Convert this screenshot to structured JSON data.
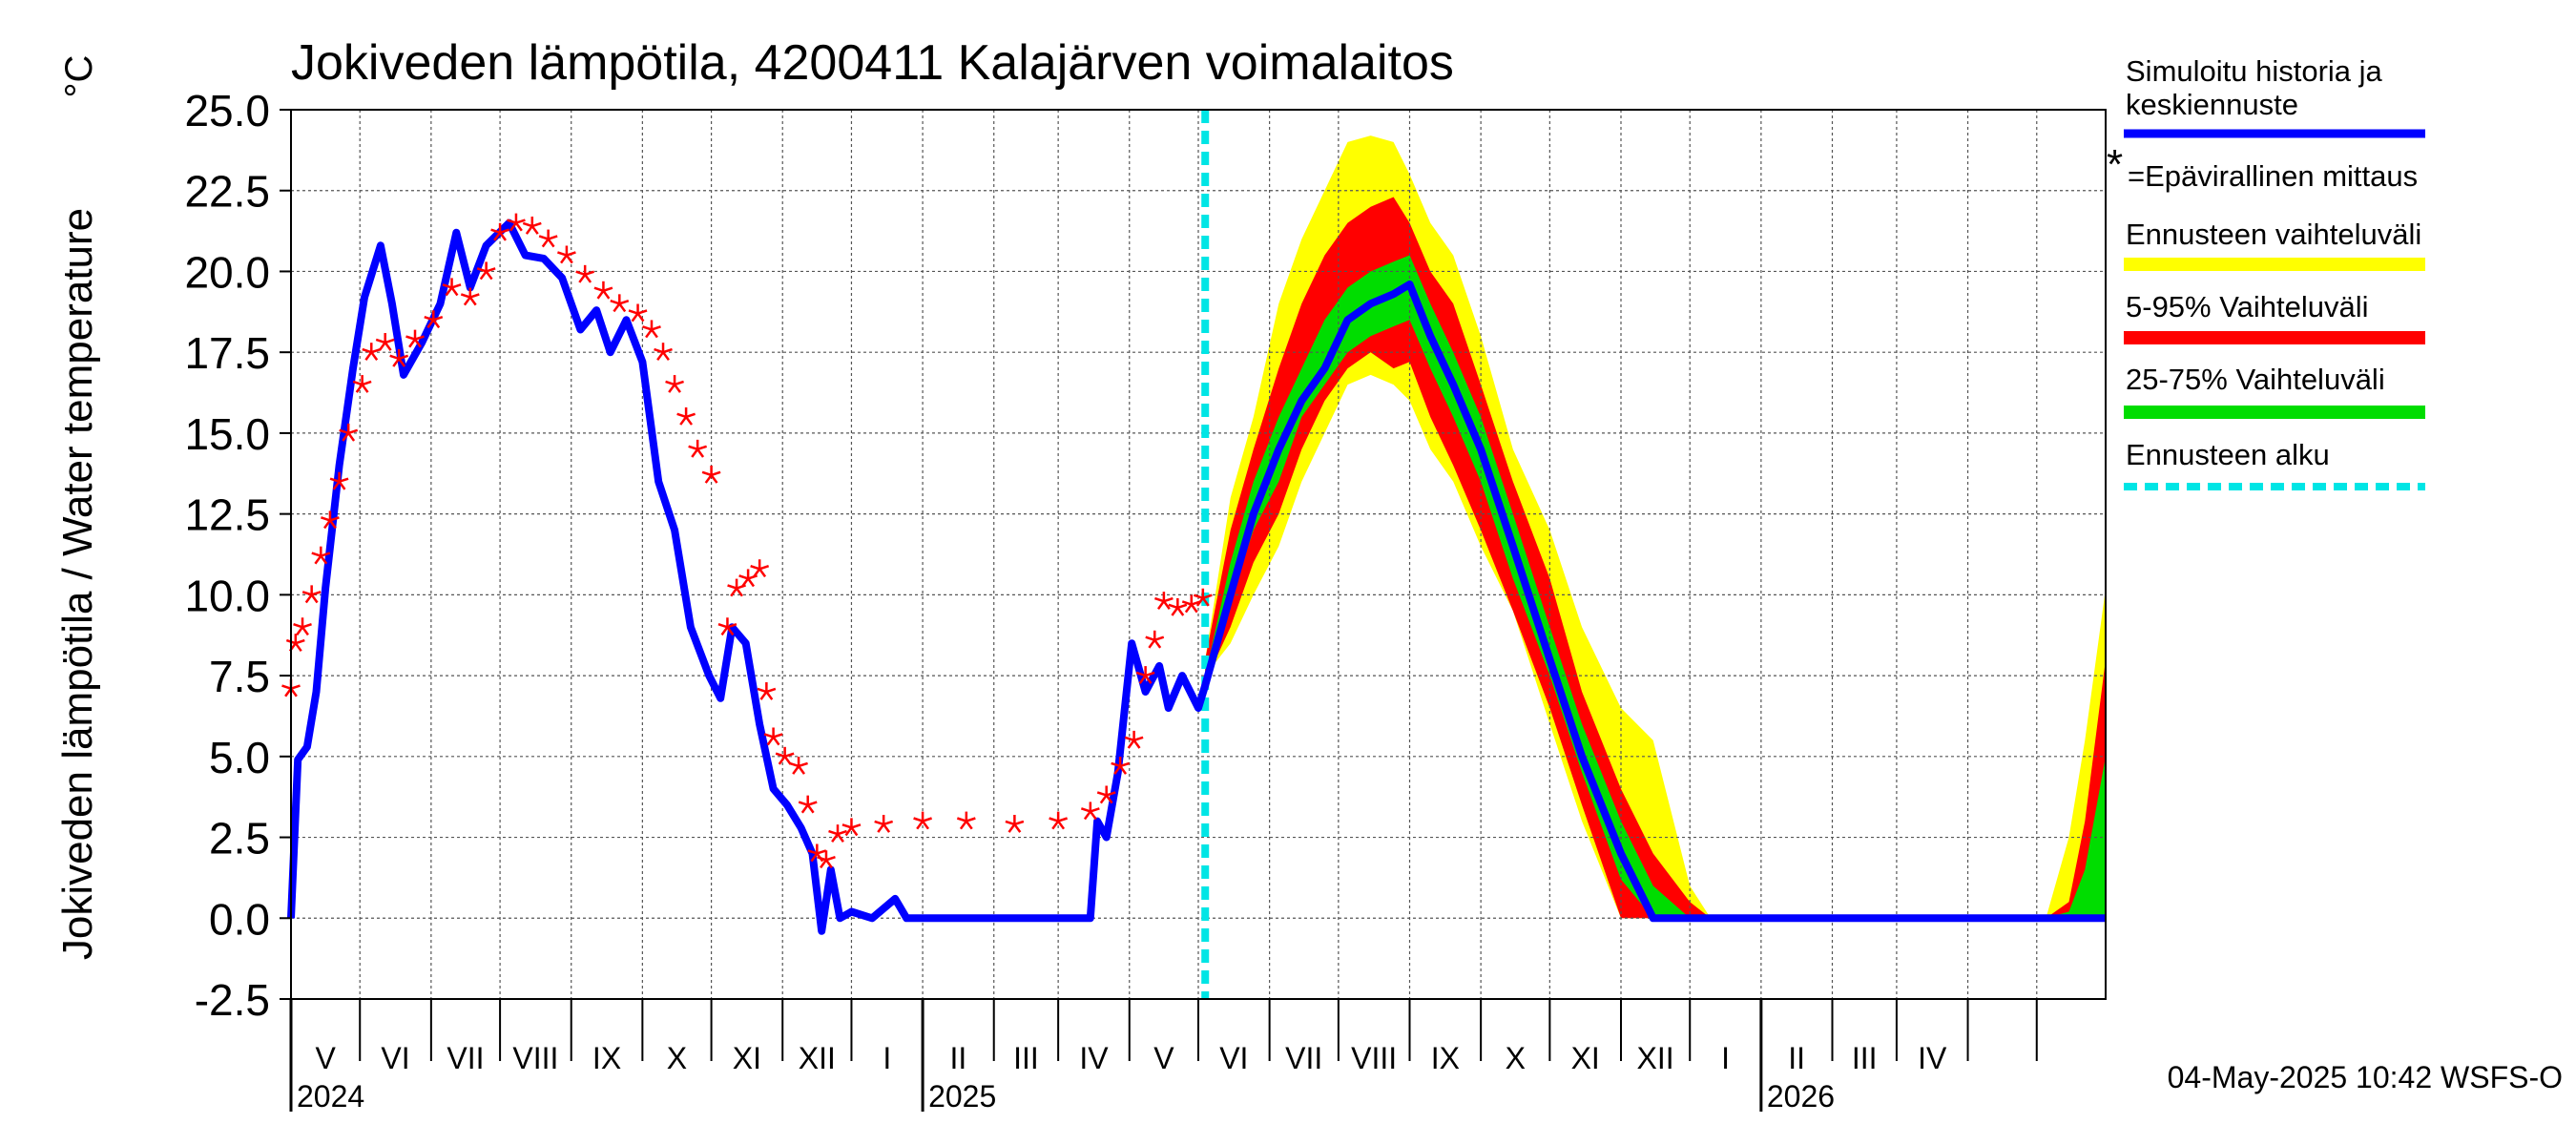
{
  "chart_data": {
    "type": "line",
    "title": "Jokiveden lämpötila, 4200411 Kalajärven voimalaitos",
    "ylabel": "Jokiveden lämpötila / Water temperature",
    "yunit": "°C",
    "ylim": [
      -2.5,
      25.0
    ],
    "yticks": [
      "25.0",
      "22.5",
      "20.0",
      "17.5",
      "15.0",
      "12.5",
      "10.0",
      "7.5",
      "5.0",
      "2.5",
      "0.0",
      "-2.5"
    ],
    "xlim": [
      "2024-04-01",
      "2026-05-31"
    ],
    "month_labels": [
      "V",
      "VI",
      "VII",
      "VIII",
      "IX",
      "X",
      "XI",
      "XII",
      "I",
      "II",
      "III",
      "IV",
      "V",
      "VI",
      "VII",
      "VIII",
      "IX",
      "X",
      "XI",
      "XII",
      "I",
      "II",
      "III",
      "IV"
    ],
    "year_labels": [
      "2024",
      "2025",
      "2026"
    ],
    "forecast_start": "2025-05-04",
    "timestamp": "04-May-2025 10:42 WSFS-O",
    "grid": true,
    "legend_position": "right",
    "legend": {
      "simulated": "Simuloitu historia ja keskiennuste",
      "observed": "=Epävirallinen mittaus",
      "range_full": "Ennusteen vaihteluväli",
      "range_5_95": "5-95% Vaihteluväli",
      "range_25_75": "25-75% Vaihteluväli",
      "forecast_start": "Ennusteen alku"
    },
    "colors": {
      "simulated": "#0000ff",
      "observed": "#ff0000",
      "range_full": "#ffff00",
      "range_5_95": "#ff0000",
      "range_25_75": "#00dd00",
      "forecast_start": "#00e5e5"
    },
    "series": [
      {
        "name": "Simuloitu historia ja keskiennuste",
        "points": [
          [
            "2024-04-01",
            0.0
          ],
          [
            "2024-04-04",
            4.9
          ],
          [
            "2024-04-08",
            5.3
          ],
          [
            "2024-04-12",
            7.0
          ],
          [
            "2024-04-16",
            10.2
          ],
          [
            "2024-04-22",
            14.0
          ],
          [
            "2024-04-28",
            17.0
          ],
          [
            "2024-05-03",
            19.2
          ],
          [
            "2024-05-10",
            20.8
          ],
          [
            "2024-05-15",
            19.0
          ],
          [
            "2024-05-20",
            16.8
          ],
          [
            "2024-05-28",
            17.8
          ],
          [
            "2024-06-05",
            19.0
          ],
          [
            "2024-06-12",
            21.2
          ],
          [
            "2024-06-18",
            19.5
          ],
          [
            "2024-06-25",
            20.8
          ],
          [
            "2024-07-05",
            21.5
          ],
          [
            "2024-07-12",
            20.5
          ],
          [
            "2024-07-20",
            20.4
          ],
          [
            "2024-07-28",
            19.8
          ],
          [
            "2024-08-05",
            18.2
          ],
          [
            "2024-08-12",
            18.8
          ],
          [
            "2024-08-18",
            17.5
          ],
          [
            "2024-08-25",
            18.5
          ],
          [
            "2024-09-01",
            17.2
          ],
          [
            "2024-09-08",
            13.5
          ],
          [
            "2024-09-15",
            12.0
          ],
          [
            "2024-09-22",
            9.0
          ],
          [
            "2024-09-30",
            7.5
          ],
          [
            "2024-10-05",
            6.8
          ],
          [
            "2024-10-10",
            9.0
          ],
          [
            "2024-10-16",
            8.5
          ],
          [
            "2024-10-22",
            6.0
          ],
          [
            "2024-10-28",
            4.0
          ],
          [
            "2024-11-03",
            3.5
          ],
          [
            "2024-11-09",
            2.8
          ],
          [
            "2024-11-14",
            2.0
          ],
          [
            "2024-11-18",
            -0.4
          ],
          [
            "2024-11-22",
            1.5
          ],
          [
            "2024-11-26",
            0.0
          ],
          [
            "2024-12-01",
            0.2
          ],
          [
            "2024-12-10",
            0.0
          ],
          [
            "2024-12-20",
            0.6
          ],
          [
            "2024-12-25",
            0.0
          ],
          [
            "2025-03-15",
            0.0
          ],
          [
            "2025-03-18",
            3.0
          ],
          [
            "2025-03-22",
            2.5
          ],
          [
            "2025-03-27",
            4.5
          ],
          [
            "2025-04-02",
            8.5
          ],
          [
            "2025-04-08",
            7.0
          ],
          [
            "2025-04-14",
            7.8
          ],
          [
            "2025-04-18",
            6.5
          ],
          [
            "2025-04-24",
            7.5
          ],
          [
            "2025-05-01",
            6.5
          ],
          [
            "2025-05-04",
            7.2
          ],
          [
            "2025-05-15",
            10.0
          ],
          [
            "2025-05-25",
            12.5
          ],
          [
            "2025-06-05",
            14.5
          ],
          [
            "2025-06-15",
            16.0
          ],
          [
            "2025-06-25",
            17.0
          ],
          [
            "2025-07-05",
            18.5
          ],
          [
            "2025-07-15",
            19.0
          ],
          [
            "2025-07-25",
            19.3
          ],
          [
            "2025-08-01",
            19.6
          ],
          [
            "2025-08-10",
            18.0
          ],
          [
            "2025-08-20",
            16.5
          ],
          [
            "2025-09-01",
            14.5
          ],
          [
            "2025-09-15",
            11.5
          ],
          [
            "2025-10-01",
            8.0
          ],
          [
            "2025-10-15",
            5.0
          ],
          [
            "2025-11-01",
            2.0
          ],
          [
            "2025-11-15",
            0.0
          ],
          [
            "2026-05-31",
            0.0
          ]
        ]
      },
      {
        "name": "=Epävirallinen mittaus",
        "points": [
          [
            "2024-04-01",
            7.1
          ],
          [
            "2024-04-03",
            8.5
          ],
          [
            "2024-04-06",
            9.0
          ],
          [
            "2024-04-10",
            10.0
          ],
          [
            "2024-04-14",
            11.2
          ],
          [
            "2024-04-18",
            12.3
          ],
          [
            "2024-04-22",
            13.5
          ],
          [
            "2024-04-26",
            15.0
          ],
          [
            "2024-05-02",
            16.5
          ],
          [
            "2024-05-06",
            17.5
          ],
          [
            "2024-05-12",
            17.8
          ],
          [
            "2024-05-18",
            17.3
          ],
          [
            "2024-05-25",
            17.9
          ],
          [
            "2024-06-02",
            18.5
          ],
          [
            "2024-06-10",
            19.5
          ],
          [
            "2024-06-18",
            19.2
          ],
          [
            "2024-06-25",
            20.0
          ],
          [
            "2024-07-01",
            21.2
          ],
          [
            "2024-07-08",
            21.5
          ],
          [
            "2024-07-15",
            21.4
          ],
          [
            "2024-07-22",
            21.0
          ],
          [
            "2024-07-30",
            20.5
          ],
          [
            "2024-08-07",
            19.9
          ],
          [
            "2024-08-15",
            19.4
          ],
          [
            "2024-08-22",
            19.0
          ],
          [
            "2024-08-30",
            18.7
          ],
          [
            "2024-09-05",
            18.2
          ],
          [
            "2024-09-10",
            17.5
          ],
          [
            "2024-09-15",
            16.5
          ],
          [
            "2024-09-20",
            15.5
          ],
          [
            "2024-09-25",
            14.5
          ],
          [
            "2024-10-01",
            13.7
          ],
          [
            "2024-10-08",
            9.0
          ],
          [
            "2024-10-12",
            10.2
          ],
          [
            "2024-10-17",
            10.5
          ],
          [
            "2024-10-22",
            10.8
          ],
          [
            "2024-10-25",
            7.0
          ],
          [
            "2024-10-28",
            5.6
          ],
          [
            "2024-11-02",
            5.0
          ],
          [
            "2024-11-08",
            4.7
          ],
          [
            "2024-11-12",
            3.5
          ],
          [
            "2024-11-16",
            2.0
          ],
          [
            "2024-11-20",
            1.8
          ],
          [
            "2024-11-25",
            2.6
          ],
          [
            "2024-12-01",
            2.8
          ],
          [
            "2024-12-15",
            2.9
          ],
          [
            "2025-01-01",
            3.0
          ],
          [
            "2025-01-20",
            3.0
          ],
          [
            "2025-02-10",
            2.9
          ],
          [
            "2025-03-01",
            3.0
          ],
          [
            "2025-03-15",
            3.3
          ],
          [
            "2025-03-22",
            3.8
          ],
          [
            "2025-03-28",
            4.7
          ],
          [
            "2025-04-03",
            5.5
          ],
          [
            "2025-04-08",
            7.5
          ],
          [
            "2025-04-12",
            8.6
          ],
          [
            "2025-04-16",
            9.8
          ],
          [
            "2025-04-22",
            9.6
          ],
          [
            "2025-04-28",
            9.7
          ],
          [
            "2025-05-03",
            9.9
          ]
        ]
      }
    ],
    "bands": {
      "dates": [
        "2025-05-04",
        "2025-05-15",
        "2025-05-25",
        "2025-06-05",
        "2025-06-15",
        "2025-06-25",
        "2025-07-05",
        "2025-07-15",
        "2025-07-25",
        "2025-08-01",
        "2025-08-10",
        "2025-08-20",
        "2025-09-01",
        "2025-09-15",
        "2025-10-01",
        "2025-10-15",
        "2025-11-01",
        "2025-11-15",
        "2025-12-01",
        "2025-12-10"
      ],
      "full_lo": [
        7.5,
        8.5,
        10.0,
        11.5,
        13.5,
        15.0,
        16.5,
        16.8,
        16.5,
        16.0,
        14.5,
        13.5,
        11.5,
        9.5,
        6.0,
        3.0,
        0.0,
        0.0,
        0.0,
        0.0
      ],
      "full_hi": [
        8.0,
        13.0,
        15.5,
        19.0,
        21.0,
        22.5,
        24.0,
        24.2,
        24.0,
        23.0,
        21.5,
        20.5,
        18.0,
        14.5,
        12.0,
        9.0,
        6.5,
        5.5,
        1.0,
        0.0
      ],
      "p5_lo": [
        7.3,
        9.0,
        11.0,
        12.5,
        14.5,
        16.0,
        17.0,
        17.5,
        17.0,
        17.2,
        15.5,
        14.0,
        12.0,
        9.5,
        6.5,
        3.5,
        0.0,
        0.0,
        0.0,
        0.0
      ],
      "p5_hi": [
        8.0,
        12.0,
        14.5,
        17.0,
        19.0,
        20.5,
        21.5,
        22.0,
        22.3,
        21.5,
        20.0,
        19.0,
        16.5,
        13.5,
        10.5,
        7.0,
        4.0,
        2.0,
        0.5,
        0.0
      ],
      "p25_lo": [
        7.3,
        9.8,
        12.0,
        13.5,
        15.5,
        16.5,
        17.5,
        18.0,
        18.3,
        18.5,
        17.0,
        15.5,
        13.5,
        10.5,
        7.5,
        4.5,
        1.2,
        0.0,
        0.0,
        0.0
      ],
      "p25_hi": [
        7.5,
        11.0,
        13.5,
        15.5,
        17.0,
        18.5,
        19.5,
        20.0,
        20.3,
        20.5,
        19.0,
        17.5,
        15.5,
        12.5,
        9.0,
        6.0,
        3.0,
        1.0,
        0.0,
        0.0
      ]
    },
    "second_spring": {
      "dates": [
        "2026-05-05",
        "2026-05-15",
        "2026-05-22",
        "2026-05-31"
      ],
      "full_hi": [
        0.0,
        2.5,
        5.5,
        10.2
      ],
      "p5_hi": [
        0.0,
        0.5,
        3.0,
        8.0
      ],
      "p25_hi": [
        0.0,
        0.2,
        1.5,
        5.0
      ]
    }
  }
}
